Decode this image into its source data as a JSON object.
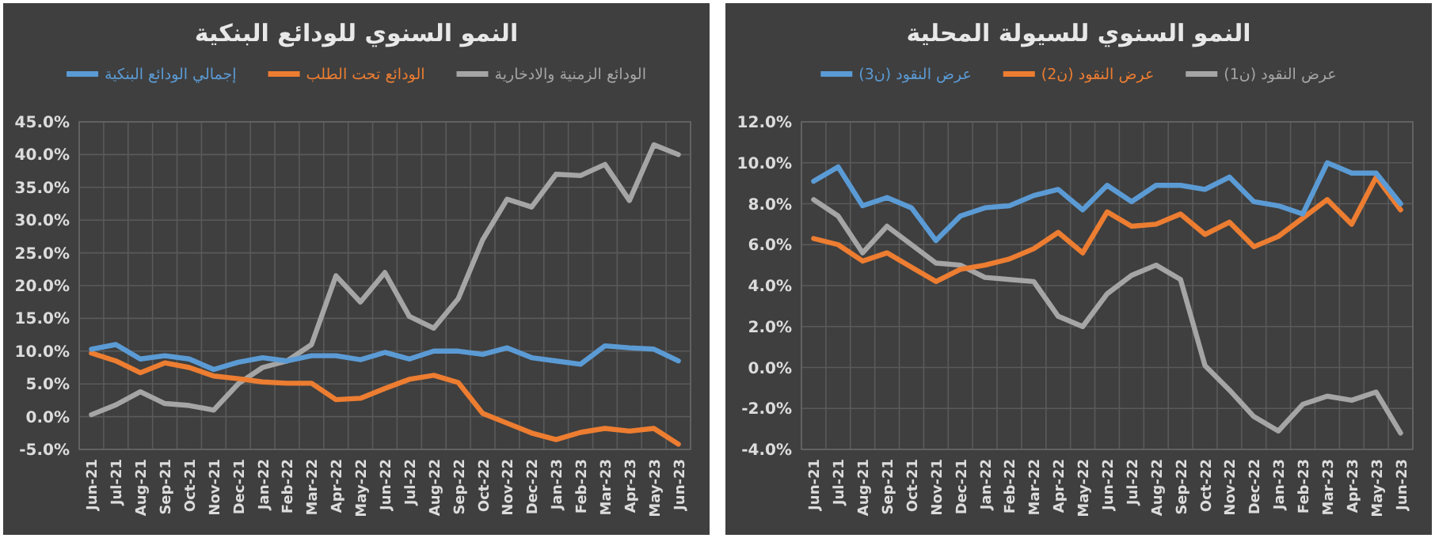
{
  "chart_data": [
    {
      "type": "line",
      "title": "النمو السنوي للودائع البنكية",
      "categories": [
        "Jun-21",
        "Jul-21",
        "Aug-21",
        "Sep-21",
        "Oct-21",
        "Nov-21",
        "Dec-21",
        "Jan-22",
        "Feb-22",
        "Mar-22",
        "Apr-22",
        "May-22",
        "Jun-22",
        "Jul-22",
        "Aug-22",
        "Sep-22",
        "Oct-22",
        "Nov-22",
        "Dec-22",
        "Jan-23",
        "Feb-23",
        "Mar-23",
        "Apr-23",
        "May-23",
        "Jun-23"
      ],
      "series": [
        {
          "name": "الودائع الزمنية والادخارية",
          "color": "#a5a5a5",
          "values": [
            0.3,
            1.8,
            3.8,
            2.0,
            1.7,
            1.0,
            5.0,
            7.5,
            8.5,
            11.0,
            21.5,
            17.5,
            22.0,
            15.3,
            13.5,
            18.0,
            27.0,
            33.2,
            32.0,
            37.0,
            36.8,
            38.5,
            33.0,
            41.5,
            40.0
          ]
        },
        {
          "name": "الودائع تحت الطلب",
          "color": "#ed7d31",
          "values": [
            9.7,
            8.5,
            6.7,
            8.2,
            7.5,
            6.2,
            5.8,
            5.3,
            5.1,
            5.1,
            2.6,
            2.8,
            4.3,
            5.7,
            6.3,
            5.2,
            0.5,
            -1.0,
            -2.5,
            -3.5,
            -2.4,
            -1.8,
            -2.2,
            -1.8,
            -4.2
          ]
        },
        {
          "name": "إجمالي الودائع البنكية",
          "color": "#5b9bd5",
          "values": [
            10.3,
            11.0,
            8.8,
            9.3,
            8.8,
            7.2,
            8.3,
            9.0,
            8.5,
            9.3,
            9.3,
            8.7,
            9.8,
            8.8,
            10.0,
            10.0,
            9.5,
            10.5,
            9.0,
            8.5,
            8.0,
            10.8,
            10.5,
            10.3,
            8.5
          ]
        }
      ],
      "ylim": [
        -5,
        45
      ],
      "yticks": [
        {
          "value": -5,
          "label": "-5.0%"
        },
        {
          "value": 0,
          "label": "0.0%"
        },
        {
          "value": 5,
          "label": "5.0%"
        },
        {
          "value": 10,
          "label": "10.0%"
        },
        {
          "value": 15,
          "label": "15.0%"
        },
        {
          "value": 20,
          "label": "20.0%"
        },
        {
          "value": 25,
          "label": "25.0%"
        },
        {
          "value": 30,
          "label": "30.0%"
        },
        {
          "value": 35,
          "label": "35.0%"
        },
        {
          "value": 40,
          "label": "40.0%"
        },
        {
          "value": 45,
          "label": "45.0%"
        }
      ],
      "grid": true,
      "legend": "top"
    },
    {
      "type": "line",
      "title": "النمو السنوي للسيولة المحلية",
      "categories": [
        "Jun-21",
        "Jul-21",
        "Aug-21",
        "Sep-21",
        "Oct-21",
        "Nov-21",
        "Dec-21",
        "Jan-22",
        "Feb-22",
        "Mar-22",
        "Apr-22",
        "May-22",
        "Jun-22",
        "Jul-22",
        "Aug-22",
        "Sep-22",
        "Oct-22",
        "Nov-22",
        "Dec-22",
        "Jan-23",
        "Feb-23",
        "Mar-23",
        "Apr-23",
        "May-23",
        "Jun-23"
      ],
      "series": [
        {
          "name": "عرض النقود (ن1)",
          "color": "#a5a5a5",
          "values": [
            8.2,
            7.4,
            5.6,
            6.9,
            6.0,
            5.1,
            5.0,
            4.4,
            4.3,
            4.2,
            2.5,
            2.0,
            3.6,
            4.5,
            5.0,
            4.3,
            0.1,
            -1.1,
            -2.4,
            -3.1,
            -1.8,
            -1.4,
            -1.6,
            -1.2,
            -3.2
          ]
        },
        {
          "name": "عرض النقود (ن2)",
          "color": "#ed7d31",
          "values": [
            6.3,
            6.0,
            5.2,
            5.6,
            4.9,
            4.2,
            4.8,
            5.0,
            5.3,
            5.8,
            6.6,
            5.6,
            7.6,
            6.9,
            7.0,
            7.5,
            6.5,
            7.1,
            5.9,
            6.4,
            7.3,
            8.2,
            7.0,
            9.3,
            7.7
          ]
        },
        {
          "name": "عرض النقود (ن3)",
          "color": "#5b9bd5",
          "values": [
            9.1,
            9.8,
            7.9,
            8.3,
            7.8,
            6.2,
            7.4,
            7.8,
            7.9,
            8.4,
            8.7,
            7.7,
            8.9,
            8.1,
            8.9,
            8.9,
            8.7,
            9.3,
            8.1,
            7.9,
            7.5,
            10.0,
            9.5,
            9.5,
            8.0
          ]
        }
      ],
      "ylim": [
        -4,
        12
      ],
      "yticks": [
        {
          "value": -4,
          "label": "-4.0%"
        },
        {
          "value": -2,
          "label": "-2.0%"
        },
        {
          "value": 0,
          "label": "0.0%"
        },
        {
          "value": 2,
          "label": "2.0%"
        },
        {
          "value": 4,
          "label": "4.0%"
        },
        {
          "value": 6,
          "label": "6.0%"
        },
        {
          "value": 8,
          "label": "8.0%"
        },
        {
          "value": 10,
          "label": "10.0%"
        },
        {
          "value": 12,
          "label": "12.0%"
        }
      ],
      "grid": true,
      "legend": "top"
    }
  ]
}
